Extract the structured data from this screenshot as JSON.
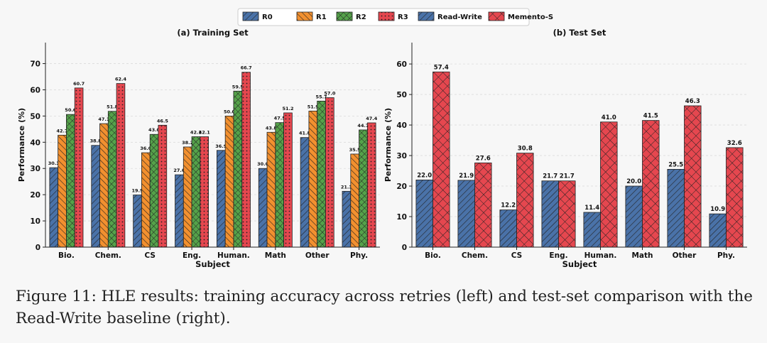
{
  "legend": [
    {
      "name": "R0",
      "color": "#4a72a8",
      "pattern": "diag"
    },
    {
      "name": "R1",
      "color": "#f2902f",
      "pattern": "bdiag"
    },
    {
      "name": "R2",
      "color": "#55a24a",
      "pattern": "cross"
    },
    {
      "name": "R3",
      "color": "#e5474f",
      "pattern": "dots"
    },
    {
      "name": "Read-Write",
      "color": "#4a72a8",
      "pattern": "diag"
    },
    {
      "name": "Memento-S",
      "color": "#e5474f",
      "pattern": "xhatch"
    }
  ],
  "chart_data": [
    {
      "type": "bar",
      "title": "(a) Training Set",
      "xlabel": "Subject",
      "ylabel": "Performance (%)",
      "ylim": [
        0,
        78
      ],
      "yticks": [
        0,
        10,
        20,
        30,
        40,
        50,
        60,
        70
      ],
      "grid": "y",
      "categories": [
        "Bio.",
        "Chem.",
        "CS",
        "Eng.",
        "Human.",
        "Math",
        "Other",
        "Phy."
      ],
      "series": [
        {
          "name": "R0",
          "color": "#4a72a8",
          "pattern": "diag",
          "values": [
            30.3,
            38.8,
            19.9,
            27.6,
            36.9,
            30.0,
            41.8,
            21.3
          ],
          "labels": [
            "30.3",
            "38.8",
            "19.9",
            "27.6",
            "36.9",
            "30.0",
            "41.8",
            "21.3"
          ]
        },
        {
          "name": "R1",
          "color": "#f2902f",
          "pattern": "bdiag",
          "values": [
            42.7,
            47.1,
            36.0,
            38.2,
            50.0,
            43.8,
            51.9,
            35.5
          ],
          "labels": [
            "42.7",
            "47.1",
            "36.0",
            "38.2",
            "50.0",
            "43.8",
            "51.9",
            "35.5"
          ]
        },
        {
          "name": "R2",
          "color": "#55a24a",
          "pattern": "cross",
          "values": [
            50.6,
            51.8,
            43.0,
            42.1,
            59.5,
            47.5,
            55.7,
            44.7
          ],
          "labels": [
            "50.6",
            "51.8",
            "43.0",
            "42.1",
            "59.5",
            "47.5",
            "55.7",
            "44.7"
          ]
        },
        {
          "name": "R3",
          "color": "#e5474f",
          "pattern": "dots",
          "values": [
            60.7,
            62.4,
            46.5,
            42.1,
            66.7,
            51.2,
            57.0,
            47.4
          ],
          "labels": [
            "60.7",
            "62.4",
            "46.5",
            "42.1",
            "66.7",
            "51.2",
            "57.0",
            "47.4"
          ]
        }
      ]
    },
    {
      "type": "bar",
      "title": "(b) Test Set",
      "xlabel": "Subject",
      "ylabel": "Performance (%)",
      "ylim": [
        0,
        67
      ],
      "yticks": [
        0,
        10,
        20,
        30,
        40,
        50,
        60
      ],
      "grid": "y",
      "categories": [
        "Bio.",
        "Chem.",
        "CS",
        "Eng.",
        "Human.",
        "Math",
        "Other",
        "Phy."
      ],
      "series": [
        {
          "name": "Read-Write",
          "color": "#4a72a8",
          "pattern": "diag",
          "values": [
            22.0,
            21.9,
            12.2,
            21.7,
            11.4,
            20.0,
            25.5,
            10.9
          ],
          "labels": [
            "22.0",
            "21.9",
            "12.2",
            "21.7",
            "11.4",
            "20.0",
            "25.5",
            "10.9"
          ]
        },
        {
          "name": "Memento-S",
          "color": "#e5474f",
          "pattern": "xhatch",
          "values": [
            57.4,
            27.6,
            30.8,
            21.7,
            41.0,
            41.5,
            46.3,
            32.6
          ],
          "labels": [
            "57.4",
            "27.6",
            "30.8",
            "21.7",
            "41.0",
            "41.5",
            "46.3",
            "32.6"
          ]
        }
      ]
    }
  ],
  "caption": "Figure 11: HLE results: training accuracy across retries (left) and test-set comparison with the Read-Write baseline (right)."
}
